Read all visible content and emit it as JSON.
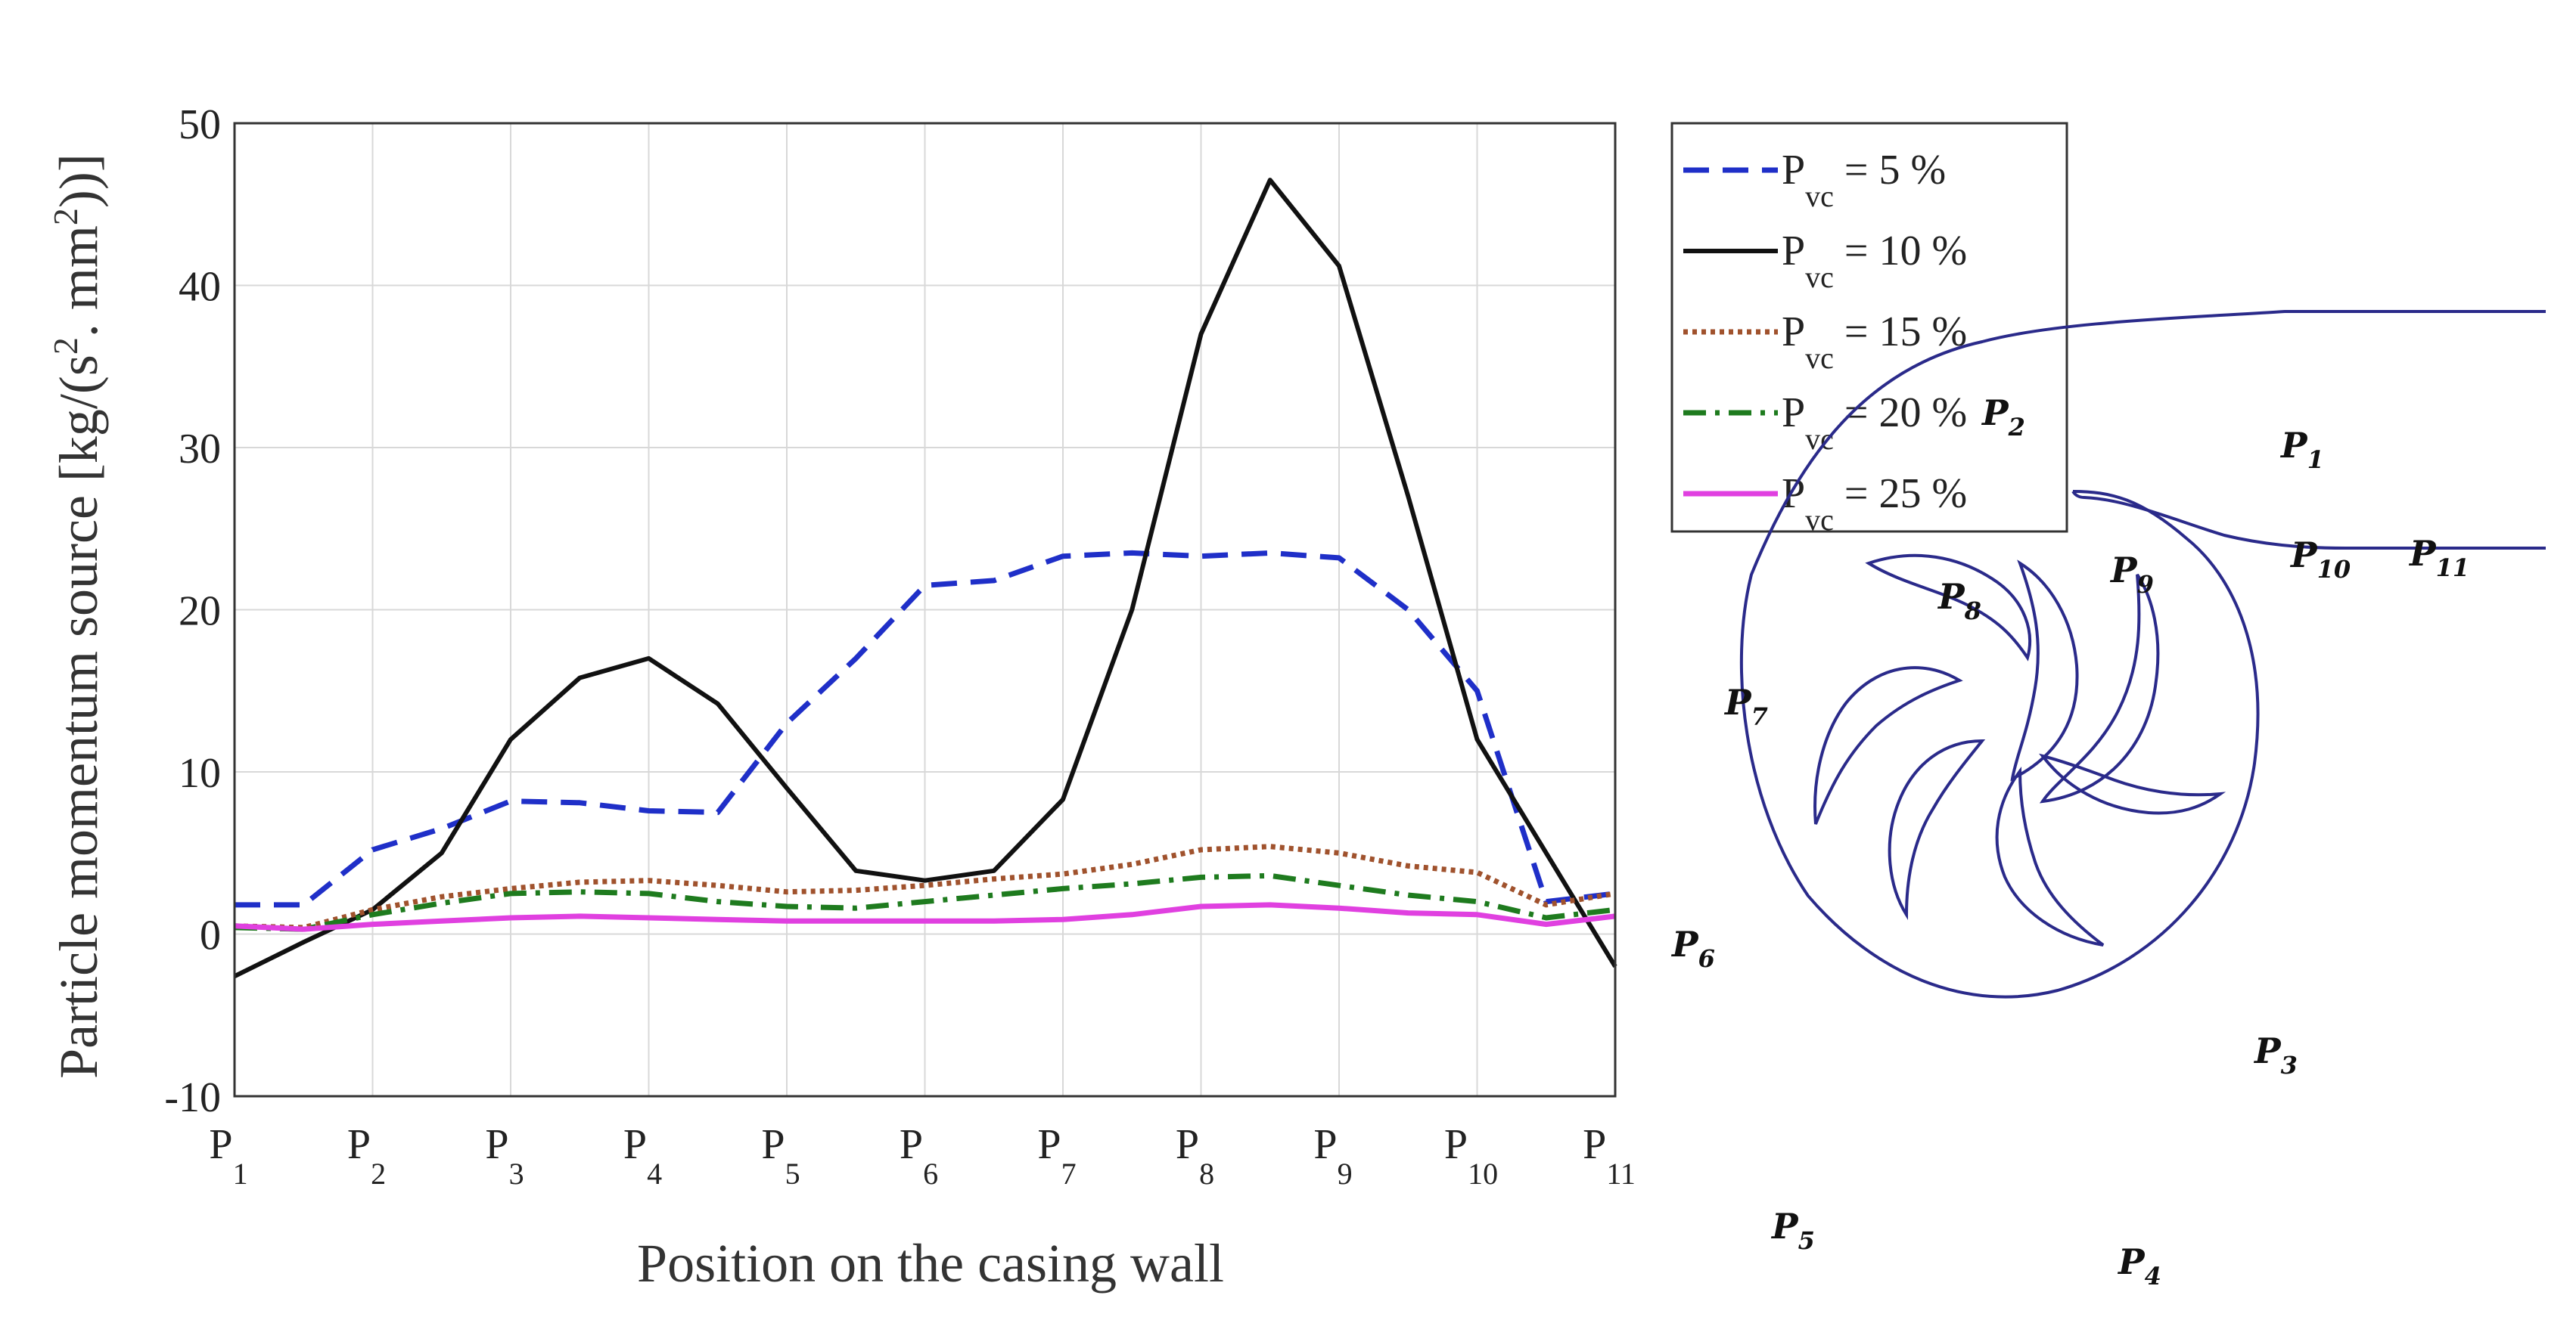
{
  "chart_data": {
    "type": "line",
    "title": "",
    "xlabel": "Position on the casing wall",
    "ylabel": "Particle momentum source [kg/(s",
    "ylabel_parts": {
      "unit_open": "Particle momentum source [kg/(s",
      "sup1": "2",
      "mid": ". mm",
      "sup2": "2",
      "close": "))]"
    },
    "ylim": [
      -10,
      50
    ],
    "yticks": [
      "-10",
      "0",
      "10",
      "20",
      "30",
      "40",
      "50"
    ],
    "xlim": [
      1,
      11
    ],
    "xticks": [
      {
        "base": "P",
        "sub": "1"
      },
      {
        "base": "P",
        "sub": "2"
      },
      {
        "base": "P",
        "sub": "3"
      },
      {
        "base": "P",
        "sub": "4"
      },
      {
        "base": "P",
        "sub": "5"
      },
      {
        "base": "P",
        "sub": "6"
      },
      {
        "base": "P",
        "sub": "7"
      },
      {
        "base": "P",
        "sub": "8"
      },
      {
        "base": "P",
        "sub": "9"
      },
      {
        "base": "P",
        "sub": "10"
      },
      {
        "base": "P",
        "sub": "11"
      }
    ],
    "grid": true,
    "legend_position": "outside-right-top",
    "series": [
      {
        "name": "5 %",
        "label_base": "P",
        "label_sub": "vc",
        "label_rest": "= 5 %",
        "color": "#1f2fc8",
        "dash": "dashed",
        "x": [
          1,
          1.5,
          2,
          2.5,
          3,
          3.5,
          4,
          4.5,
          5,
          5.5,
          6,
          6.5,
          7,
          7.5,
          8,
          8.5,
          9,
          9.5,
          10,
          10.5,
          11
        ],
        "y": [
          1.8,
          1.8,
          5.2,
          6.5,
          8.2,
          8.1,
          7.6,
          7.5,
          13.0,
          17.0,
          21.5,
          21.8,
          23.3,
          23.5,
          23.3,
          23.5,
          23.2,
          20.0,
          15.0,
          2.0,
          2.5
        ]
      },
      {
        "name": "10 %",
        "label_base": "P",
        "label_sub": "vc",
        "label_rest": "= 10 %",
        "color": "#111111",
        "dash": "solid",
        "x": [
          1,
          1.5,
          2,
          2.5,
          3,
          3.5,
          4,
          4.5,
          5,
          5.5,
          6,
          6.5,
          7,
          7.5,
          8,
          8.5,
          9,
          9.5,
          10,
          10.5,
          11
        ],
        "y": [
          -2.6,
          -0.5,
          1.5,
          5.0,
          12.0,
          15.8,
          17.0,
          14.2,
          9.0,
          3.9,
          3.3,
          3.9,
          8.3,
          20.0,
          37.0,
          46.5,
          41.2,
          27.0,
          12.0,
          5.0,
          -2.0
        ]
      },
      {
        "name": "15 %",
        "label_base": "P",
        "label_sub": "vc",
        "label_rest": "= 15 %",
        "color": "#a0522d",
        "dash": "dotted",
        "x": [
          1,
          1.5,
          2,
          2.5,
          3,
          3.5,
          4,
          4.5,
          5,
          5.5,
          6,
          6.5,
          7,
          7.5,
          8,
          8.5,
          9,
          9.5,
          10,
          10.5,
          11
        ],
        "y": [
          0.5,
          0.4,
          1.5,
          2.3,
          2.8,
          3.2,
          3.3,
          3.0,
          2.6,
          2.7,
          3.0,
          3.4,
          3.7,
          4.3,
          5.2,
          5.4,
          5.0,
          4.2,
          3.8,
          1.8,
          2.5
        ]
      },
      {
        "name": "20 %",
        "label_base": "P",
        "label_sub": "vc",
        "label_rest": "= 20 %",
        "color": "#1e7b1e",
        "dash": "dashdot",
        "x": [
          1,
          1.5,
          2,
          2.5,
          3,
          3.5,
          4,
          4.5,
          5,
          5.5,
          6,
          6.5,
          7,
          7.5,
          8,
          8.5,
          9,
          9.5,
          10,
          10.5,
          11
        ],
        "y": [
          0.4,
          0.3,
          1.2,
          1.9,
          2.5,
          2.6,
          2.5,
          2.0,
          1.7,
          1.6,
          2.0,
          2.4,
          2.8,
          3.1,
          3.5,
          3.6,
          3.0,
          2.4,
          2.0,
          1.0,
          1.5
        ]
      },
      {
        "name": "25 %",
        "label_base": "P",
        "label_sub": "vc",
        "label_rest": "= 25 %",
        "color": "#e040e0",
        "dash": "solid",
        "x": [
          1,
          1.5,
          2,
          2.5,
          3,
          3.5,
          4,
          4.5,
          5,
          5.5,
          6,
          6.5,
          7,
          7.5,
          8,
          8.5,
          9,
          9.5,
          10,
          10.5,
          11
        ],
        "y": [
          0.5,
          0.3,
          0.6,
          0.8,
          1.0,
          1.1,
          1.0,
          0.9,
          0.8,
          0.8,
          0.8,
          0.8,
          0.9,
          1.2,
          1.7,
          1.8,
          1.6,
          1.3,
          1.2,
          0.6,
          1.1
        ]
      }
    ]
  },
  "diagram": {
    "labels": [
      {
        "id": "p1",
        "base": "P",
        "sub": "1"
      },
      {
        "id": "p2",
        "base": "P",
        "sub": "2"
      },
      {
        "id": "p3",
        "base": "P",
        "sub": "3"
      },
      {
        "id": "p4",
        "base": "P",
        "sub": "4"
      },
      {
        "id": "p5",
        "base": "P",
        "sub": "5"
      },
      {
        "id": "p6",
        "base": "P",
        "sub": "6"
      },
      {
        "id": "p7",
        "base": "P",
        "sub": "7"
      },
      {
        "id": "p8",
        "base": "P",
        "sub": "8"
      },
      {
        "id": "p9",
        "base": "P",
        "sub": "9"
      },
      {
        "id": "p10",
        "base": "P",
        "sub": "10"
      },
      {
        "id": "p11",
        "base": "P",
        "sub": "11"
      }
    ]
  }
}
